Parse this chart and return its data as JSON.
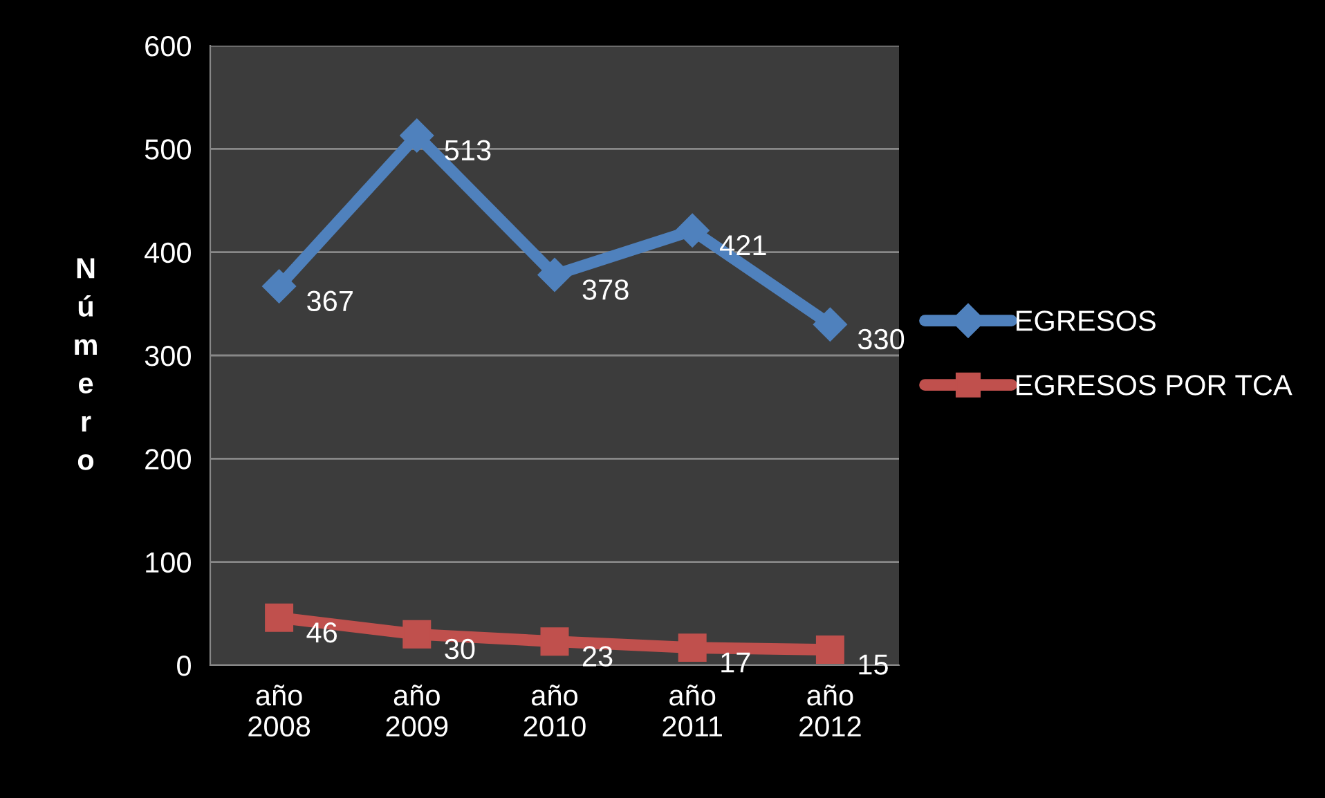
{
  "chart_data": {
    "type": "line",
    "ylabel": "Número",
    "categories": [
      "año\n2008",
      "año\n2009",
      "año\n2010",
      "año\n2011",
      "año\n2012"
    ],
    "series": [
      {
        "name": "EGRESOS",
        "color": "#4f81bd",
        "marker": "diamond",
        "values": [
          367,
          513,
          378,
          421,
          330
        ]
      },
      {
        "name": "EGRESOS POR TCA",
        "color": "#c0504d",
        "marker": "square",
        "values": [
          46,
          30,
          23,
          17,
          15
        ]
      }
    ],
    "ylim": [
      0,
      600
    ],
    "yticks": [
      0,
      100,
      200,
      300,
      400,
      500,
      600
    ],
    "grid": "y",
    "legend": "right",
    "data_labels": true,
    "line_style": "solid"
  }
}
